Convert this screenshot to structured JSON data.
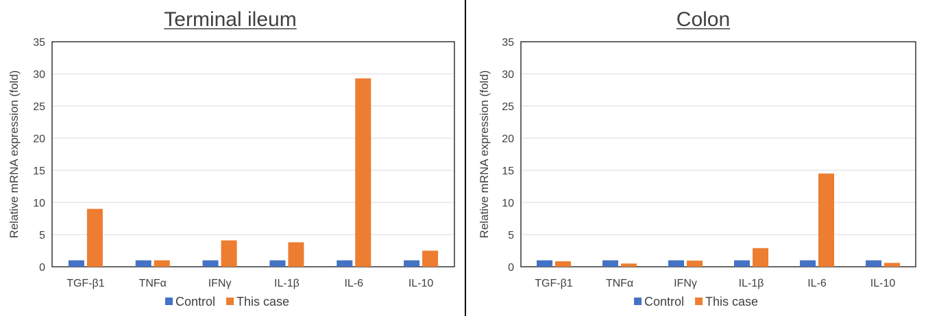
{
  "colors": {
    "control": "#4472C4",
    "case": "#ED7D31",
    "grid": "#D9D9D9",
    "axis": "#000000",
    "text": "#404040",
    "divider": "#000000"
  },
  "chart_data": [
    {
      "type": "bar",
      "title": "Terminal ileum",
      "ylabel": "Relative mRNA expression (fold)",
      "xlabel": "",
      "ylim": [
        0,
        35
      ],
      "yticks": [
        0,
        5,
        10,
        15,
        20,
        25,
        30,
        35
      ],
      "grid": true,
      "legend_position": "bottom",
      "categories": [
        "TGF-β1",
        "TNFα",
        "IFNγ",
        "IL-1β",
        "IL-6",
        "IL-10"
      ],
      "series": [
        {
          "name": "Control",
          "values": [
            1,
            1,
            1,
            1,
            1,
            1
          ]
        },
        {
          "name": "This case",
          "values": [
            9.0,
            1.0,
            4.1,
            3.8,
            29.3,
            2.5
          ]
        }
      ]
    },
    {
      "type": "bar",
      "title": "Colon",
      "ylabel": "Relative mRNA expression (fold)",
      "xlabel": "",
      "ylim": [
        0,
        35
      ],
      "yticks": [
        0,
        5,
        10,
        15,
        20,
        25,
        30,
        35
      ],
      "grid": true,
      "legend_position": "bottom",
      "categories": [
        "TGF-β1",
        "TNFα",
        "IFNγ",
        "IL-1β",
        "IL-6",
        "IL-10"
      ],
      "series": [
        {
          "name": "Control",
          "values": [
            1,
            1,
            1,
            1,
            1,
            1
          ]
        },
        {
          "name": "This case",
          "values": [
            0.85,
            0.5,
            0.95,
            2.9,
            14.5,
            0.6
          ]
        }
      ]
    }
  ]
}
